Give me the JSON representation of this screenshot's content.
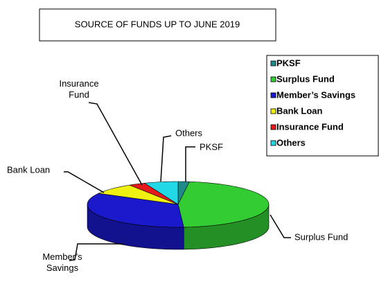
{
  "chart_data": {
    "type": "pie3d",
    "title": "SOURCE OF FUNDS UP TO JUNE 2019",
    "categories": [
      "PKSF",
      "Surplus Fund",
      "Member’s Savings",
      "Bank Loan",
      "Insurance Fund",
      "Others"
    ],
    "values": [
      2,
      47,
      34,
      8,
      3,
      6
    ],
    "colors": [
      "#1f8a8a",
      "#33cc33",
      "#1a1acc",
      "#f0f011",
      "#e61a1a",
      "#22d8e6"
    ],
    "legend": "right"
  }
}
